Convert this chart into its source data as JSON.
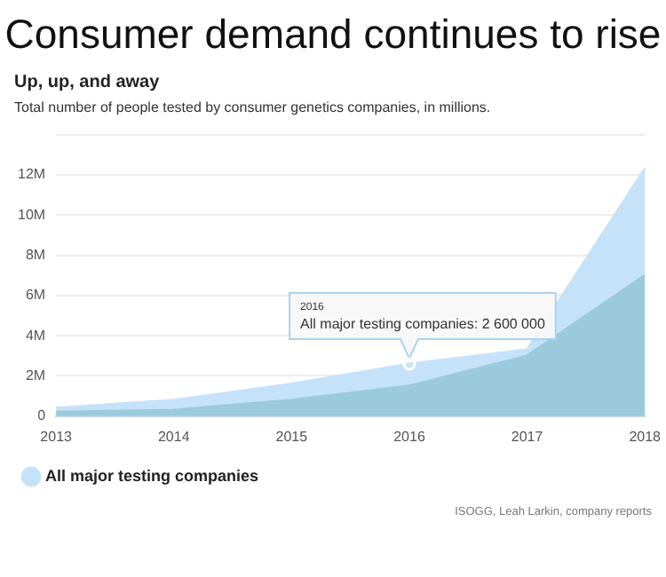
{
  "chart_data": {
    "type": "area",
    "title": "Consumer demand continues to rise",
    "subtitle": "Up, up, and away",
    "categories": [
      "2013",
      "2014",
      "2015",
      "2016",
      "2017",
      "2018"
    ],
    "series": [
      {
        "color": "#9bcadd",
        "values": [
          200000,
          300000,
          800000,
          1500000,
          3000000,
          7000000
        ]
      },
      {
        "name": "All major testing companies",
        "color": "#c6e2f8",
        "values": [
          400000,
          800000,
          1600000,
          2600000,
          3300000,
          12300000
        ]
      }
    ],
    "ylim": [
      0,
      14000000
    ],
    "yticks": [
      {
        "value": 0,
        "label": "0"
      },
      {
        "value": 2000000,
        "label": "2M"
      },
      {
        "value": 4000000,
        "label": "4M"
      },
      {
        "value": 6000000,
        "label": "6M"
      },
      {
        "value": 8000000,
        "label": "8M"
      },
      {
        "value": 10000000,
        "label": "10M"
      },
      {
        "value": 12000000,
        "label": "12M"
      },
      {
        "value": 14000000,
        "label": null
      }
    ],
    "grid": "y",
    "legend": "bottom",
    "annotations": [
      "Total number of people tested by consumer genetics companies, in millions.",
      "2016",
      {
        "text": "All major testing companies: 2 600 000",
        "x": "2016",
        "y": 2600000
      },
      "ISOGG, Leah Larkin, company reports"
    ]
  }
}
